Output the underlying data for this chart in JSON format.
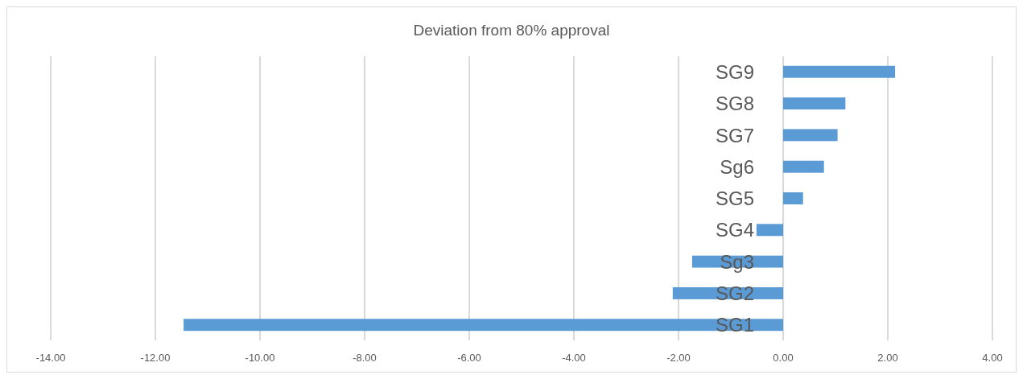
{
  "chart_data": {
    "type": "bar",
    "orientation": "horizontal",
    "title": "Deviation from 80% approval",
    "categories": [
      "SG9",
      "SG8",
      "SG7",
      "Sg6",
      "SG5",
      "SG4",
      "Sg3",
      "SG2",
      "SG1"
    ],
    "values": [
      2.14,
      1.19,
      1.04,
      0.78,
      0.38,
      -0.51,
      -1.74,
      -2.11,
      -11.46
    ],
    "color": "#5b9bd5",
    "xlim": [
      -14,
      4
    ],
    "xticks": [
      {
        "value": -14,
        "label": "-14.00"
      },
      {
        "value": -12,
        "label": "-12.00"
      },
      {
        "value": -10,
        "label": "-10.00"
      },
      {
        "value": -8,
        "label": "-8.00"
      },
      {
        "value": -6,
        "label": "-6.00"
      },
      {
        "value": -4,
        "label": "-4.00"
      },
      {
        "value": -2,
        "label": "-2.00"
      },
      {
        "value": 0,
        "label": "0.00"
      },
      {
        "value": 2,
        "label": "2.00"
      },
      {
        "value": 4,
        "label": "4.00"
      }
    ],
    "grid": "x"
  }
}
